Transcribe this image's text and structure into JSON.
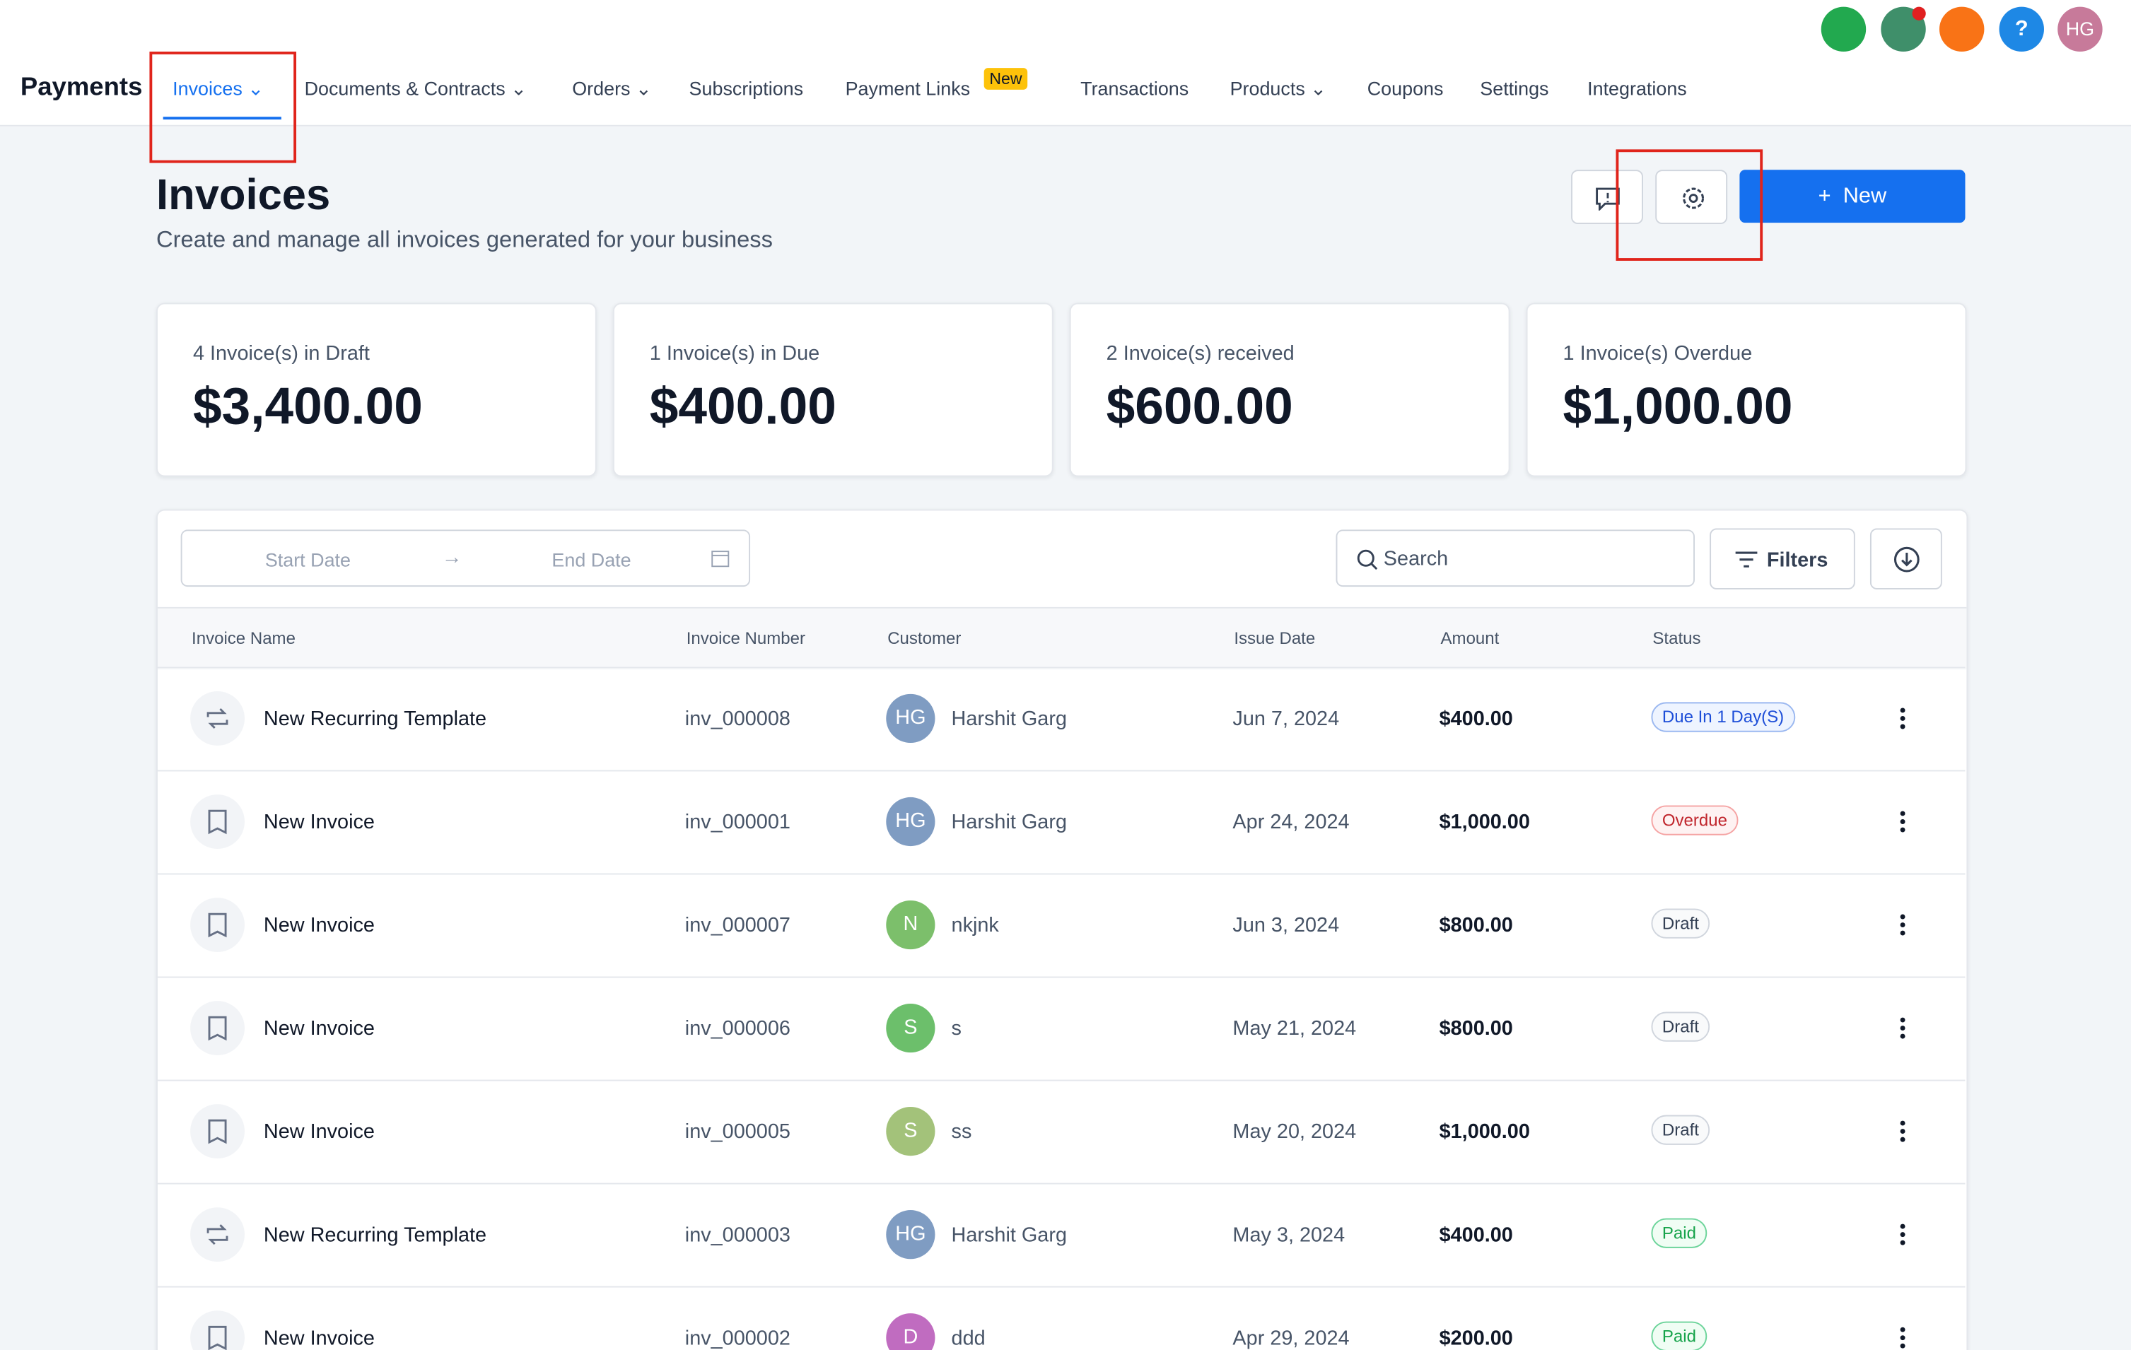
{
  "nav": {
    "brand": "Payments",
    "tabs": [
      "Invoices",
      "Documents & Contracts",
      "Orders",
      "Subscriptions",
      "Payment Links",
      "Transactions",
      "Products",
      "Coupons",
      "Settings",
      "Integrations"
    ],
    "new_badge": "New",
    "avatar": "HG"
  },
  "header": {
    "title": "Invoices",
    "subtitle": "Create and manage all invoices generated for your business",
    "new_button": "New"
  },
  "stats": [
    {
      "label": "4 Invoice(s) in Draft",
      "amount": "$3,400.00"
    },
    {
      "label": "1 Invoice(s) in Due",
      "amount": "$400.00"
    },
    {
      "label": "2 Invoice(s) received",
      "amount": "$600.00"
    },
    {
      "label": "1 Invoice(s) Overdue",
      "amount": "$1,000.00"
    }
  ],
  "toolbar": {
    "start_date": "Start Date",
    "end_date": "End Date",
    "search": "Search",
    "filters": "Filters"
  },
  "table": {
    "columns": [
      "Invoice Name",
      "Invoice Number",
      "Customer",
      "Issue Date",
      "Amount",
      "Status"
    ],
    "rows": [
      {
        "name": "New Recurring Template",
        "number": "inv_000008",
        "initials": "HG",
        "customer": "Harshit Garg",
        "date": "Jun 7, 2024",
        "amount": "$400.00",
        "status": "Due In 1 Day(S)"
      },
      {
        "name": "New Invoice",
        "number": "inv_000001",
        "initials": "HG",
        "customer": "Harshit Garg",
        "date": "Apr 24, 2024",
        "amount": "$1,000.00",
        "status": "Overdue"
      },
      {
        "name": "New Invoice",
        "number": "inv_000007",
        "initials": "N",
        "customer": "nkjnk",
        "date": "Jun 3, 2024",
        "amount": "$800.00",
        "status": "Draft"
      },
      {
        "name": "New Invoice",
        "number": "inv_000006",
        "initials": "S",
        "customer": "s",
        "date": "May 21, 2024",
        "amount": "$800.00",
        "status": "Draft"
      },
      {
        "name": "New Invoice",
        "number": "inv_000005",
        "initials": "S",
        "customer": "ss",
        "date": "May 20, 2024",
        "amount": "$1,000.00",
        "status": "Draft"
      },
      {
        "name": "New Recurring Template",
        "number": "inv_000003",
        "initials": "HG",
        "customer": "Harshit Garg",
        "date": "May 3, 2024",
        "amount": "$400.00",
        "status": "Paid"
      },
      {
        "name": "New Invoice",
        "number": "inv_000002",
        "initials": "D",
        "customer": "ddd",
        "date": "Apr 29, 2024",
        "amount": "$200.00",
        "status": "Paid"
      }
    ]
  }
}
